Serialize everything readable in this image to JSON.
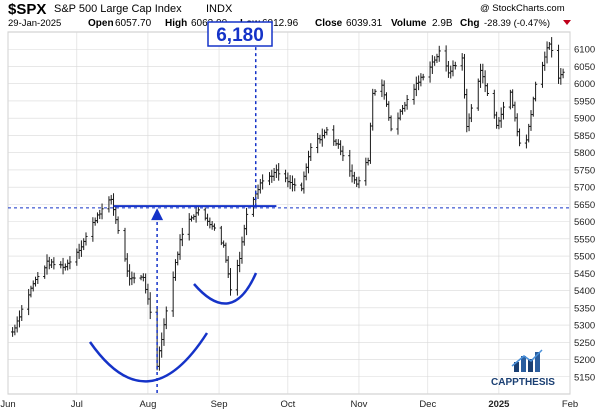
{
  "header": {
    "symbol": "$SPX",
    "name": "S&P 500 Large Cap Index",
    "exchange": "INDX",
    "date": "29-Jan-2025",
    "open_label": "Open",
    "open": "6057.70",
    "high_label": "High",
    "high": "6063.00",
    "low_label": "Low",
    "low": "6012.96",
    "close_label": "Close",
    "close": "6039.31",
    "volume_label": "Volume",
    "volume": "2.9B",
    "chg_label": "Chg",
    "chg": "-28.39 (-0.47%)",
    "copyright": "@ StockCharts.com"
  },
  "annotation": {
    "target_label": "6,180"
  },
  "brand": {
    "name": "CAPPTHESIS"
  },
  "colors": {
    "bars": "#1a1a1a",
    "annotation": "#1533c8",
    "chg_down": "#c0001a",
    "grid": "#d9d9d9",
    "brand": "#1a3f73"
  },
  "chart_data": {
    "type": "ohlc",
    "y_axis_side": "right",
    "ylim": [
      5100,
      6150
    ],
    "yticks": [
      5150,
      5200,
      5250,
      5300,
      5350,
      5400,
      5450,
      5500,
      5550,
      5600,
      5650,
      5700,
      5750,
      5800,
      5850,
      5900,
      5950,
      6000,
      6050,
      6100
    ],
    "ytick_labels": [
      "5150",
      "5200",
      "5250",
      "5300",
      "5350",
      "5400",
      "5450",
      "5500",
      "5550",
      "5600",
      "5650",
      "5700",
      "5750",
      "5800",
      "5850",
      "5900",
      "5950",
      "6000",
      "6050",
      "6100"
    ],
    "x_range": [
      "2024-06-01",
      "2025-02-01"
    ],
    "xticks": [
      {
        "date": "2024-06-01",
        "label": "Jun"
      },
      {
        "date": "2024-07-01",
        "label": "Jul"
      },
      {
        "date": "2024-08-01",
        "label": "Aug"
      },
      {
        "date": "2024-09-01",
        "label": "Sep"
      },
      {
        "date": "2024-10-01",
        "label": "Oct"
      },
      {
        "date": "2024-11-01",
        "label": "Nov"
      },
      {
        "date": "2024-12-01",
        "label": "Dec"
      },
      {
        "date": "2025-01-01",
        "label": "2025"
      },
      {
        "date": "2025-02-01",
        "label": "Feb"
      }
    ],
    "grid": true,
    "close_path": [
      [
        "2024-06-03",
        5280
      ],
      [
        "2024-06-07",
        5345
      ],
      [
        "2024-06-12",
        5420
      ],
      [
        "2024-06-18",
        5480
      ],
      [
        "2024-06-26",
        5470
      ],
      [
        "2024-07-03",
        5530
      ],
      [
        "2024-07-10",
        5620
      ],
      [
        "2024-07-16",
        5665
      ],
      [
        "2024-07-24",
        5430
      ],
      [
        "2024-07-30",
        5440
      ],
      [
        "2024-08-02",
        5340
      ],
      [
        "2024-08-05",
        5186
      ],
      [
        "2024-08-09",
        5340
      ],
      [
        "2024-08-15",
        5545
      ],
      [
        "2024-08-19",
        5610
      ],
      [
        "2024-08-23",
        5630
      ],
      [
        "2024-08-29",
        5590
      ],
      [
        "2024-09-03",
        5530
      ],
      [
        "2024-09-06",
        5408
      ],
      [
        "2024-09-10",
        5495
      ],
      [
        "2024-09-13",
        5626
      ],
      [
        "2024-09-19",
        5713
      ],
      [
        "2024-09-26",
        5745
      ],
      [
        "2024-10-02",
        5710
      ],
      [
        "2024-10-07",
        5696
      ],
      [
        "2024-10-11",
        5815
      ],
      [
        "2024-10-18",
        5864
      ],
      [
        "2024-10-24",
        5810
      ],
      [
        "2024-10-31",
        5705
      ],
      [
        "2024-11-05",
        5782
      ],
      [
        "2024-11-07",
        5973
      ],
      [
        "2024-11-11",
        6001
      ],
      [
        "2024-11-15",
        5870
      ],
      [
        "2024-11-19",
        5916
      ],
      [
        "2024-11-25",
        5987
      ],
      [
        "2024-12-06",
        6090
      ],
      [
        "2024-12-10",
        6034
      ],
      [
        "2024-12-16",
        6074
      ],
      [
        "2024-12-18",
        5872
      ],
      [
        "2024-12-24",
        6040
      ],
      [
        "2024-12-31",
        5882
      ],
      [
        "2025-01-06",
        5975
      ],
      [
        "2025-01-10",
        5827
      ],
      [
        "2025-01-13",
        5836
      ],
      [
        "2025-01-17",
        5997
      ],
      [
        "2025-01-23",
        6119
      ],
      [
        "2025-01-27",
        6012
      ],
      [
        "2025-01-29",
        6039
      ]
    ],
    "annotations": {
      "neckline": {
        "value": 5645,
        "from": "2024-07-17",
        "to": "2024-09-26"
      },
      "target_level": 6180,
      "dashed_reference": 5640,
      "arrow_up_date": "2024-08-05",
      "target_arrow_date": "2024-09-17"
    }
  }
}
